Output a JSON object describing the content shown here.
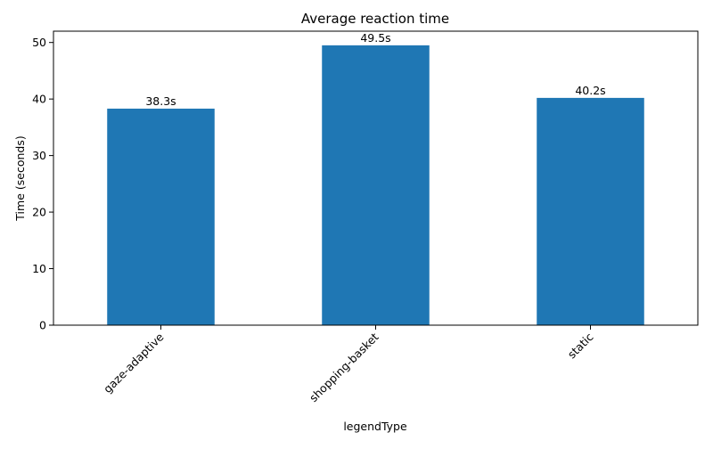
{
  "chart_data": {
    "type": "bar",
    "title": "Average reaction time",
    "xlabel": "legendType",
    "ylabel": "Time (seconds)",
    "categories": [
      "gaze-adaptive",
      "shopping-basket",
      "static"
    ],
    "values": [
      38.3,
      49.5,
      40.2
    ],
    "data_labels": [
      "38.3s",
      "49.5s",
      "40.2s"
    ],
    "yticks": [
      0,
      10,
      20,
      30,
      40,
      50
    ],
    "ytick_labels": [
      "0",
      "10",
      "20",
      "30",
      "40",
      "50"
    ],
    "ylim": [
      0,
      52
    ],
    "bar_color": "#1f77b4",
    "grid": false,
    "legend": "none"
  }
}
